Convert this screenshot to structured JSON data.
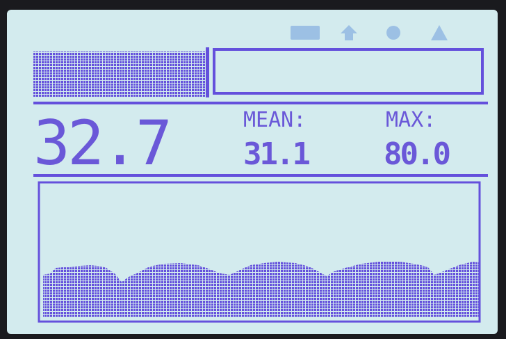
{
  "display": {
    "reading": "32.7",
    "mean_label": "MEAN:",
    "mean": "31.1",
    "max_label": "MAX:",
    "max": "80.0"
  }
}
